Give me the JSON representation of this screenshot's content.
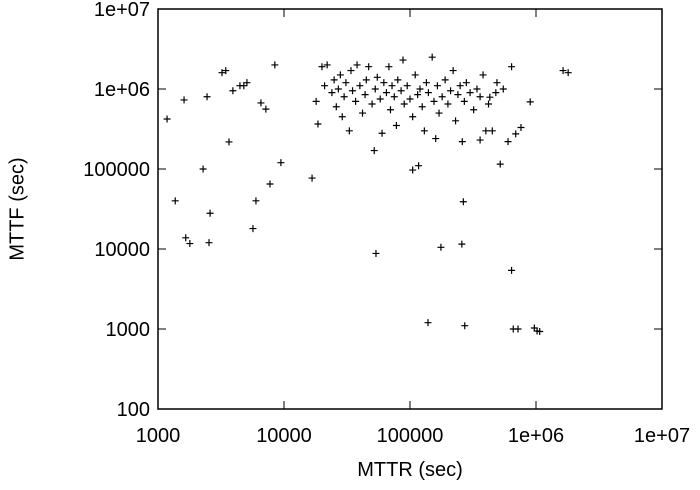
{
  "chart_data": {
    "type": "scatter",
    "xlabel": "MTTR (sec)",
    "ylabel": "MTTF (sec)",
    "xscale": "log",
    "yscale": "log",
    "color": "#000000",
    "marker": "+",
    "xlim": [
      1000,
      10000000
    ],
    "ylim": [
      100,
      10000000
    ],
    "xticks": [
      1000,
      10000,
      100000,
      {
        "value": 1000000,
        "label": "1e+06"
      },
      {
        "value": 10000000,
        "label": "1e+07"
      }
    ],
    "yticks": [
      100,
      1000,
      10000,
      100000,
      {
        "value": 1000000,
        "label": "1e+06"
      },
      {
        "value": 10000000,
        "label": "1e+07"
      }
    ],
    "x": [
      1180,
      1370,
      1610,
      1660,
      1790,
      2280,
      2590,
      2540,
      2450,
      3220,
      3450,
      3660,
      3930,
      4470,
      4800,
      5080,
      5670,
      5990,
      6560,
      7180,
      7740,
      8460,
      9450,
      16700,
      18600,
      53700,
      139000,
      176000,
      258000,
      272000,
      265000,
      640000,
      660000,
      720000,
      970000,
      1020000,
      1070000,
      1640000,
      1800000,
      105000,
      117000,
      520000,
      900000,
      690000,
      760000,
      640000,
      490000,
      430000,
      400000,
      360000,
      18000,
      20000,
      21000,
      22000,
      24000,
      25000,
      26000,
      27000,
      28000,
      29000,
      30000,
      31000,
      33000,
      34000,
      35000,
      37000,
      38000,
      40000,
      42000,
      44000,
      45000,
      47000,
      50000,
      52000,
      53000,
      55000,
      58000,
      60000,
      62000,
      65000,
      68000,
      70000,
      72000,
      75000,
      78000,
      80000,
      85000,
      88000,
      90000,
      95000,
      100000,
      105000,
      110000,
      115000,
      120000,
      125000,
      130000,
      135000,
      140000,
      150000,
      155000,
      160000,
      165000,
      170000,
      180000,
      190000,
      200000,
      210000,
      220000,
      230000,
      240000,
      250000,
      260000,
      270000,
      280000,
      300000,
      320000,
      340000,
      360000,
      380000,
      420000,
      450000,
      480000,
      550000,
      600000
    ],
    "y": [
      422000,
      40000,
      730000,
      13800,
      11700,
      100000,
      28000,
      12000,
      800000,
      1600000,
      1700000,
      218000,
      950000,
      1100000,
      1100000,
      1200000,
      18000,
      40000,
      670000,
      560000,
      65000,
      2000000,
      120000,
      77000,
      365000,
      8800,
      1200,
      10500,
      11500,
      1100,
      39000,
      5400,
      1000,
      1000,
      1030,
      944,
      930,
      1700000,
      1600000,
      97000,
      110000,
      115000,
      690000,
      275000,
      330000,
      1900000,
      1200000,
      790000,
      300000,
      230000,
      700000,
      1900000,
      1100000,
      2000000,
      900000,
      1300000,
      600000,
      1000000,
      1500000,
      450000,
      800000,
      1200000,
      300000,
      1700000,
      950000,
      700000,
      2000000,
      1100000,
      500000,
      850000,
      1300000,
      1900000,
      650000,
      170000,
      1000000,
      1400000,
      750000,
      280000,
      1200000,
      900000,
      1900000,
      550000,
      1100000,
      800000,
      350000,
      1300000,
      950000,
      2300000,
      650000,
      1100000,
      750000,
      450000,
      1500000,
      850000,
      1000000,
      600000,
      300000,
      1200000,
      900000,
      2500000,
      700000,
      240000,
      1100000,
      500000,
      800000,
      1300000,
      650000,
      950000,
      1700000,
      400000,
      850000,
      1100000,
      220000,
      700000,
      1200000,
      900000,
      550000,
      1000000,
      800000,
      1500000,
      650000,
      300000,
      900000,
      1000000,
      220000
    ]
  }
}
